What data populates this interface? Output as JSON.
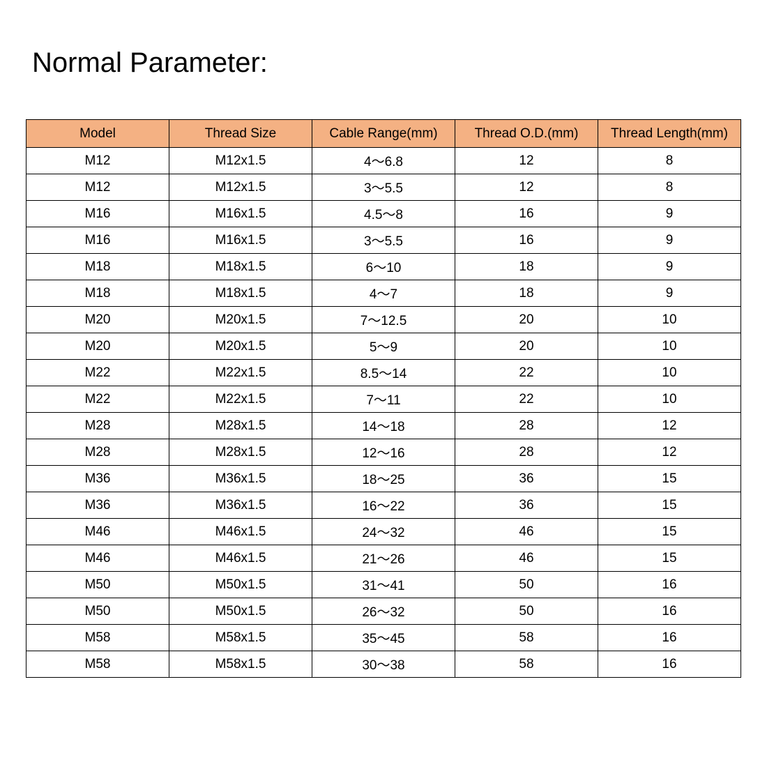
{
  "title": "Normal Parameter:",
  "header_color": "#F4B183",
  "table": {
    "columns": [
      "Model",
      "Thread Size",
      "Cable Range(mm)",
      "Thread O.D.(mm)",
      "Thread Length(mm)"
    ],
    "rows": [
      [
        "M12",
        "M12x1.5",
        "4～6.8",
        "12",
        "8"
      ],
      [
        "M12",
        "M12x1.5",
        "3～5.5",
        "12",
        "8"
      ],
      [
        "M16",
        "M16x1.5",
        "4.5～8",
        "16",
        "9"
      ],
      [
        "M16",
        "M16x1.5",
        "3～5.5",
        "16",
        "9"
      ],
      [
        "M18",
        "M18x1.5",
        "6～10",
        "18",
        "9"
      ],
      [
        "M18",
        "M18x1.5",
        "4～7",
        "18",
        "9"
      ],
      [
        "M20",
        "M20x1.5",
        "7～12.5",
        "20",
        "10"
      ],
      [
        "M20",
        "M20x1.5",
        "5～9",
        "20",
        "10"
      ],
      [
        "M22",
        "M22x1.5",
        "8.5～14",
        "22",
        "10"
      ],
      [
        "M22",
        "M22x1.5",
        "7～11",
        "22",
        "10"
      ],
      [
        "M28",
        "M28x1.5",
        "14～18",
        "28",
        "12"
      ],
      [
        "M28",
        "M28x1.5",
        "12～16",
        "28",
        "12"
      ],
      [
        "M36",
        "M36x1.5",
        "18～25",
        "36",
        "15"
      ],
      [
        "M36",
        "M36x1.5",
        "16～22",
        "36",
        "15"
      ],
      [
        "M46",
        "M46x1.5",
        "24～32",
        "46",
        "15"
      ],
      [
        "M46",
        "M46x1.5",
        "21～26",
        "46",
        "15"
      ],
      [
        "M50",
        "M50x1.5",
        "31～41",
        "50",
        "16"
      ],
      [
        "M50",
        "M50x1.5",
        "26～32",
        "50",
        "16"
      ],
      [
        "M58",
        "M58x1.5",
        "35～45",
        "58",
        "16"
      ],
      [
        "M58",
        "M58x1.5",
        "30～38",
        "58",
        "16"
      ]
    ]
  }
}
